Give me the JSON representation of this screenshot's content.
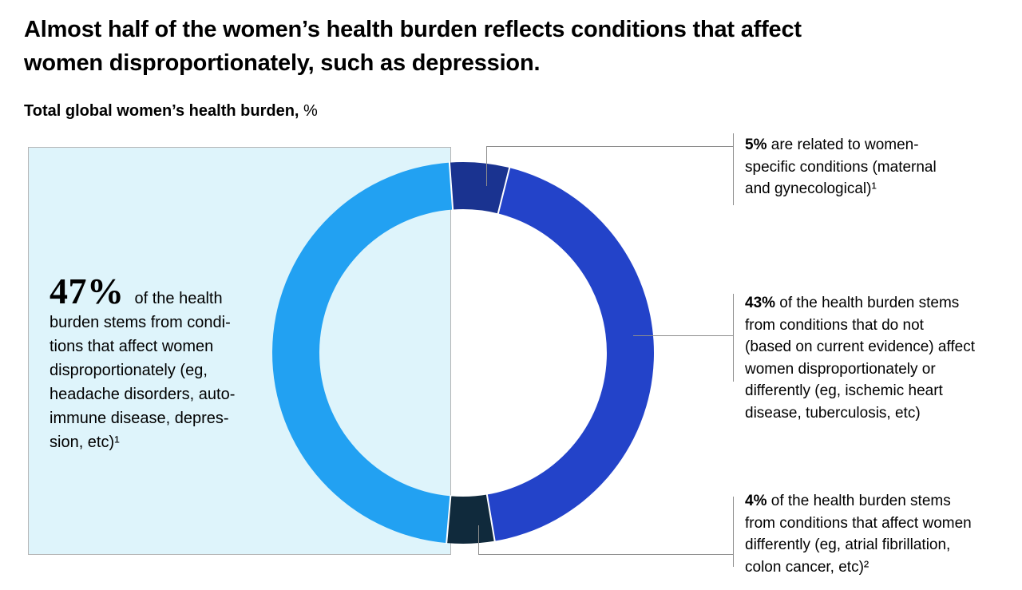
{
  "title": "Almost half of the women’s health burden reflects conditions that affect\nwomen disproportionately, such as depression.",
  "subtitle": {
    "label": "Total global women’s health burden,",
    "unit": " %"
  },
  "highlight": {
    "pct": "47%",
    "text": "of the health\nburden stems from condi-\ntions that affect women\ndisproportionately (eg,\nheadache disorders, auto-\nimmune disease, depres-\nsion, etc)¹"
  },
  "annotations": [
    {
      "pct": "5%",
      "text": " are related to women-\nspecific conditions (maternal\nand gynecological)¹"
    },
    {
      "pct": "43%",
      "text": " of the health burden stems\nfrom conditions that do not\n(based on current evidence) affect\nwomen disproportionately or\ndifferently (eg, ischemic heart\ndisease, tuberculosis, etc)"
    },
    {
      "pct": "4%",
      "text": " of the health burden stems\nfrom conditions that affect women\ndifferently (eg, atrial fibrillation,\ncolon cancer, etc)²"
    }
  ],
  "chart_data": {
    "type": "pie",
    "donut": true,
    "title": "Total global women’s health burden, %",
    "start_angle_deg": -4.1,
    "clockwise": true,
    "series": [
      {
        "name": "women-specific conditions (maternal and gynecological)",
        "value": 5,
        "color": "#1a3390"
      },
      {
        "name": "conditions that do not (based on current evidence) affect women disproportionately or differently",
        "value": 43,
        "color": "#2343c9"
      },
      {
        "name": "conditions that affect women differently",
        "value": 4,
        "color": "#102a3c"
      },
      {
        "name": "conditions that affect women disproportionately",
        "value": 47,
        "color": "#22a1f2"
      }
    ]
  },
  "colors": {
    "panel_bg": "#def4fb",
    "panel_border": "#b5b5b5",
    "callout_line": "#8e8e8e",
    "separator": "#ffffff",
    "text": "#000000"
  }
}
